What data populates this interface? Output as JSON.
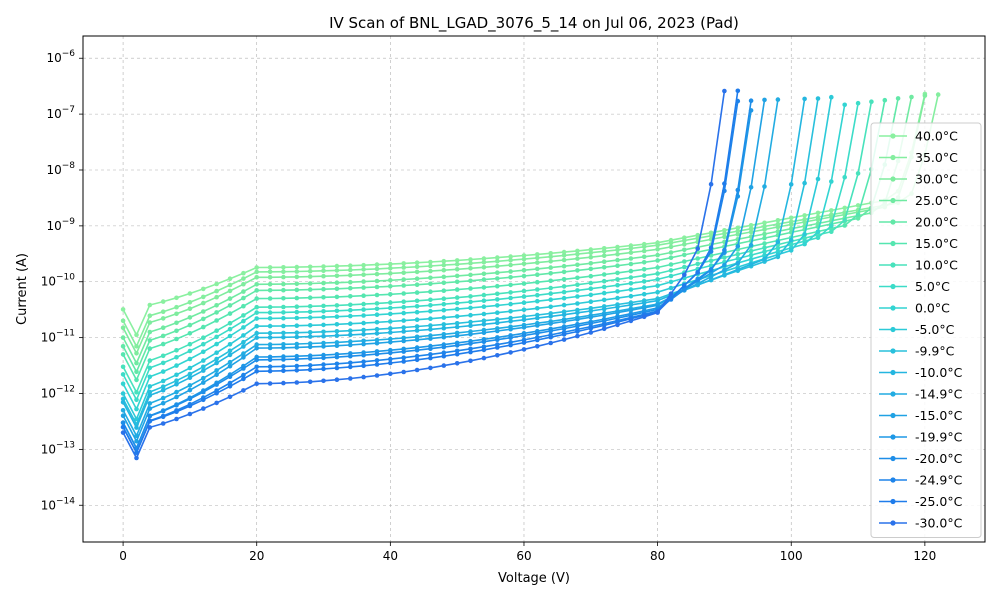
{
  "chart_data": {
    "type": "line",
    "title": "IV Scan of BNL_LGAD_3076_5_14 on Jul 06, 2023 (Pad)",
    "xlabel": "Voltage (V)",
    "ylabel": "Current (A)",
    "xlim": [
      -6,
      129
    ],
    "ylim": [
      2.2e-15,
      2.5e-06
    ],
    "yscale": "log",
    "grid": true,
    "legend_position": "right",
    "x_ticks": [
      0,
      20,
      40,
      60,
      80,
      100,
      120
    ],
    "x_tick_labels": [
      "0",
      "20",
      "40",
      "60",
      "80",
      "100",
      "120"
    ],
    "y_ticks": [
      1e-14,
      1e-13,
      1e-12,
      1e-11,
      1e-10,
      1e-09,
      1e-08,
      1e-07,
      1e-06
    ],
    "y_tick_labels": [
      "10^-14",
      "10^-13",
      "10^-12",
      "10^-11",
      "10^-10",
      "10^-9",
      "10^-8",
      "10^-7",
      "10^-6"
    ],
    "y_tick_base": "10",
    "y_tick_exponents": [
      "−14",
      "−13",
      "−12",
      "−11",
      "−10",
      "−9",
      "−8",
      "−7",
      "−6"
    ],
    "series": [
      {
        "name": "40.0°C",
        "color": "#8af0a0",
        "breakdown": 121.0,
        "i0": 3.2e-11,
        "i20": 1.8e-10,
        "i80": 5e-10
      },
      {
        "name": "35.0°C",
        "color": "#84ee9f",
        "breakdown": 123.0,
        "i0": 2e-11,
        "i20": 1.5e-10,
        "i80": 4.5e-10
      },
      {
        "name": "30.0°C",
        "color": "#7eec9e",
        "breakdown": 121.0,
        "i0": 1.5e-11,
        "i20": 1.2e-10,
        "i80": 3.8e-10
      },
      {
        "name": "25.0°C",
        "color": "#70eaa2",
        "breakdown": 119.0,
        "i0": 1e-11,
        "i20": 9e-11,
        "i80": 3e-10
      },
      {
        "name": "20.0°C",
        "color": "#62e8a8",
        "breakdown": 117.0,
        "i0": 7e-12,
        "i20": 7e-11,
        "i80": 2.4e-10
      },
      {
        "name": "15.0°C",
        "color": "#55e6b0",
        "breakdown": 115.0,
        "i0": 5e-12,
        "i20": 5e-11,
        "i80": 1.8e-10
      },
      {
        "name": "10.0°C",
        "color": "#48e2bc",
        "breakdown": 113.0,
        "i0": 3e-12,
        "i20": 3.5e-11,
        "i80": 1.4e-10
      },
      {
        "name": "5.0°C",
        "color": "#3cdcc8",
        "breakdown": 111.0,
        "i0": 2.2e-12,
        "i20": 2.8e-11,
        "i80": 1.1e-10
      },
      {
        "name": "0.0°C",
        "color": "#32d4d2",
        "breakdown": 109.0,
        "i0": 1.5e-12,
        "i20": 2.2e-11,
        "i80": 8.5e-11
      },
      {
        "name": "-5.0°C",
        "color": "#2ccad8",
        "breakdown": 106.8,
        "i0": 1e-12,
        "i20": 1.6e-11,
        "i80": 6.5e-11
      },
      {
        "name": "-9.9°C",
        "color": "#28c0dc",
        "breakdown": 104.8,
        "i0": 8e-13,
        "i20": 1.2e-11,
        "i80": 5e-11
      },
      {
        "name": "-10.0°C",
        "color": "#24b6e0",
        "breakdown": 102.8,
        "i0": 7e-13,
        "i20": 1e-11,
        "i80": 4.6e-11
      },
      {
        "name": "-14.9°C",
        "color": "#22ace2",
        "breakdown": 98.8,
        "i0": 5e-13,
        "i20": 7.5e-12,
        "i80": 4e-11
      },
      {
        "name": "-15.0°C",
        "color": "#20a2e4",
        "breakdown": 96.8,
        "i0": 4e-13,
        "i20": 6.5e-12,
        "i80": 3.8e-11
      },
      {
        "name": "-19.9°C",
        "color": "#1e98e6",
        "breakdown": 95.0,
        "i0": 3e-13,
        "i20": 4.5e-12,
        "i80": 3.4e-11
      },
      {
        "name": "-20.0°C",
        "color": "#1e8ee8",
        "breakdown": 94.8,
        "i0": 3e-13,
        "i20": 4e-12,
        "i80": 3.2e-11
      },
      {
        "name": "-24.9°C",
        "color": "#1e84ea",
        "breakdown": 92.8,
        "i0": 2.5e-13,
        "i20": 3e-12,
        "i80": 3e-11
      },
      {
        "name": "-25.0°C",
        "color": "#1f7ceb",
        "breakdown": 92.6,
        "i0": 2.5e-13,
        "i20": 2.5e-12,
        "i80": 2.9e-11
      },
      {
        "name": "-30.0°C",
        "color": "#2a72ea",
        "breakdown": 90.6,
        "i0": 2e-13,
        "i20": 1.5e-12,
        "i80": 2.8e-11
      }
    ]
  }
}
